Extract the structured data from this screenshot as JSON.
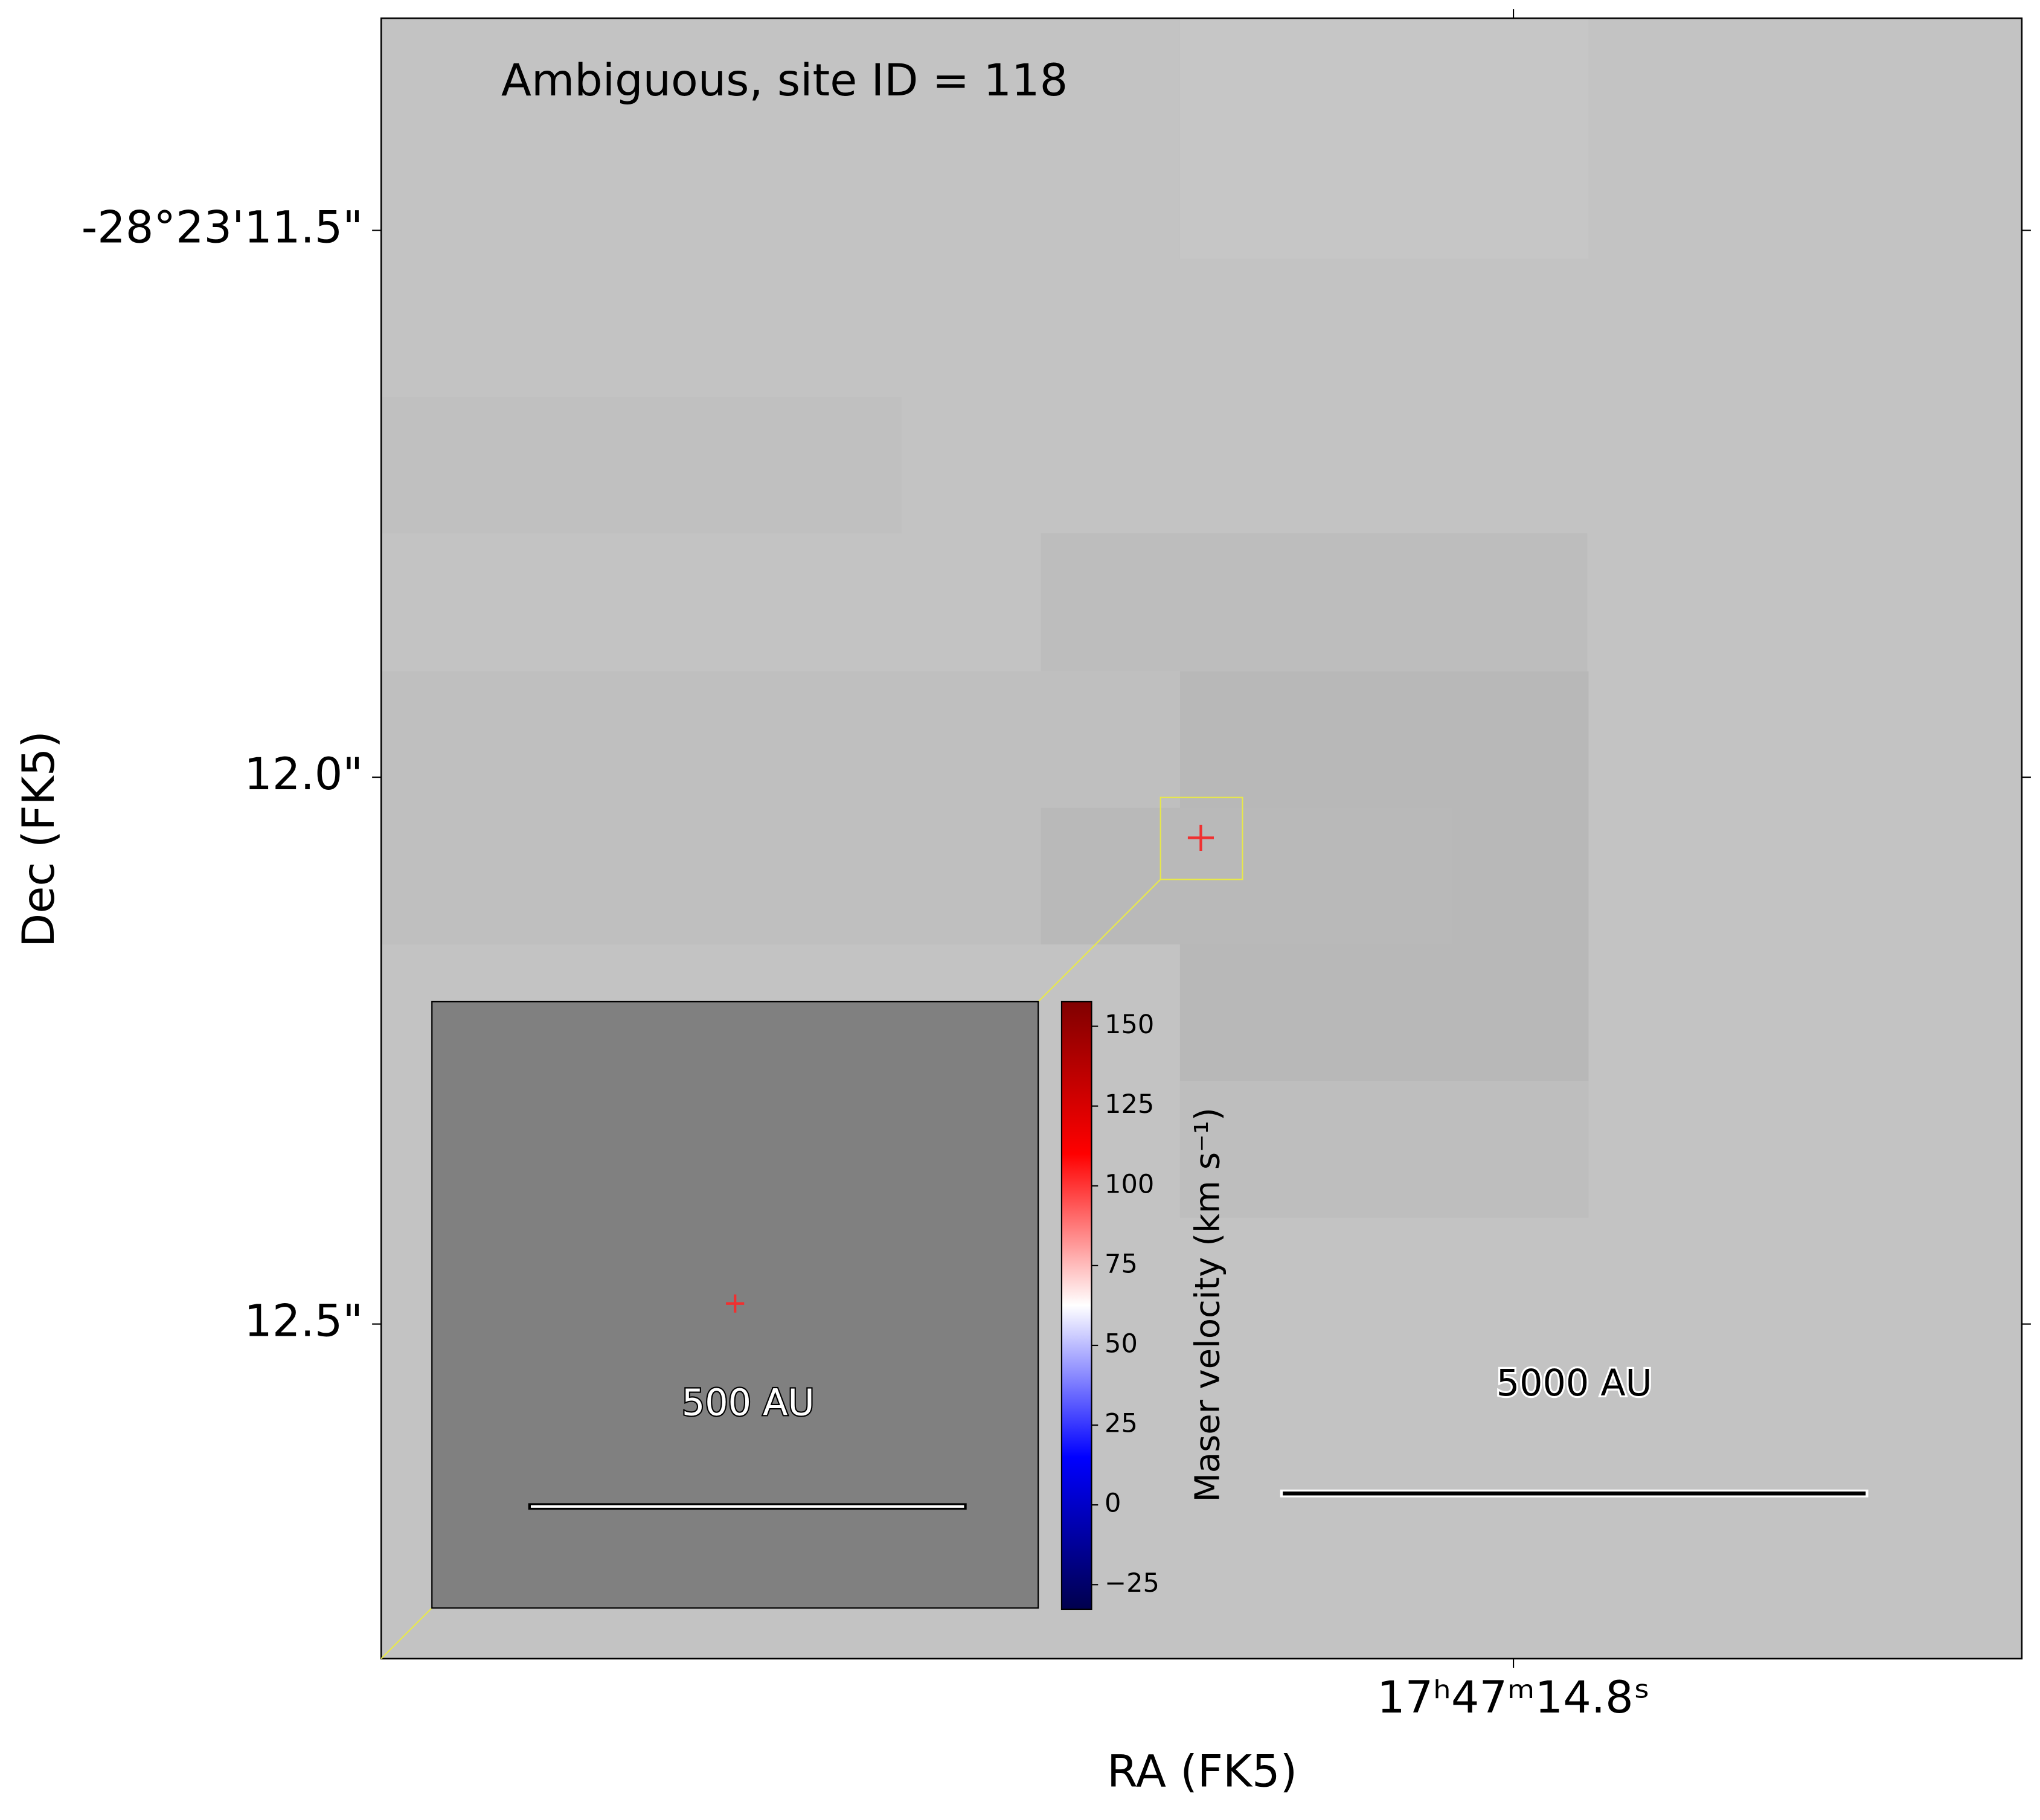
{
  "chart_data": {
    "type": "image",
    "annotation": "Ambiguous, site ID = 118",
    "x_label": "RA (FK5)",
    "y_label": "Dec (FK5)",
    "xlim": [
      14.8784,
      14.7648
    ],
    "xticks": [
      {
        "value": 14.8,
        "label": "17ʰ47ᵐ14.8ˢ"
      }
    ],
    "ylim": [
      12.806,
      11.306
    ],
    "yticks": [
      {
        "value": 11.5,
        "label": "-28°23'11.5\""
      },
      {
        "value": 12.0,
        "label": "12.0\""
      },
      {
        "value": 12.5,
        "label": "12.5\""
      }
    ],
    "colorbar_label": "Maser velocity (km s⁻¹)",
    "clim": [
      -32.7,
      157.7
    ],
    "cticks": [
      {
        "value": -25,
        "label": "−25"
      },
      0,
      25,
      50,
      75,
      100,
      125,
      150
    ],
    "colormap": [
      "#00004d",
      "#0000ff",
      "#ffffff",
      "#ff0000",
      "#800000"
    ],
    "inset_scale_label": "500 AU",
    "scale_label": "5000 AU"
  }
}
